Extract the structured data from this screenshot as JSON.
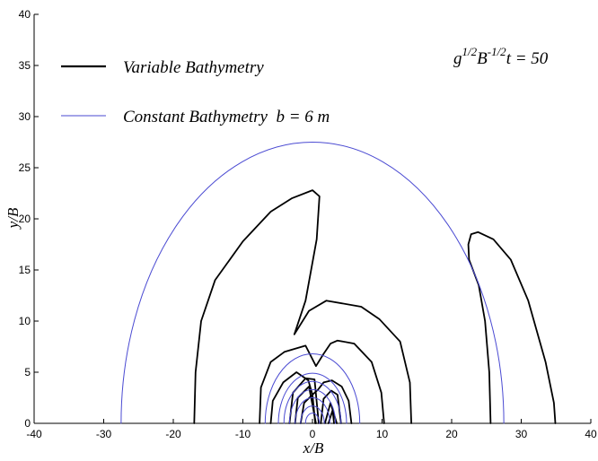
{
  "chart_data": {
    "type": "line",
    "xlabel": "x/B",
    "ylabel": "y/B",
    "xlim": [
      -40,
      40
    ],
    "ylim": [
      0,
      40
    ],
    "xticks": [
      -40,
      -30,
      -20,
      -10,
      0,
      10,
      20,
      30,
      40
    ],
    "yticks": [
      0,
      5,
      10,
      15,
      20,
      25,
      30,
      35,
      40
    ],
    "grid": false,
    "legend_position": "top-left",
    "annotation": {
      "base": "g",
      "exp1": "1/2",
      "mid": "B",
      "exp2": "-1/2",
      "tail": "t = 50"
    },
    "series": [
      {
        "name": "Variable Bathymetry",
        "color": "#000000",
        "curves": [
          {
            "x": [
              -17,
              -16.8,
              -16,
              -14,
              -10,
              -6,
              -3,
              0,
              1,
              0.6,
              -1,
              -2.6,
              -0.5,
              2,
              7,
              9.6,
              12.6,
              14,
              14.2
            ],
            "y": [
              0,
              5,
              10,
              14,
              17.8,
              20.7,
              22,
              22.8,
              22.2,
              18,
              12,
              8.7,
              11,
              12,
              11.4,
              10.2,
              8,
              4,
              0
            ]
          },
          {
            "x": [
              -7.6,
              -7.4,
              -6,
              -4,
              -1,
              0.5,
              1.6,
              2.6,
              3.6,
              6,
              8.5,
              9.9,
              10.3
            ],
            "y": [
              0,
              3.5,
              6,
              7,
              7.6,
              5.6,
              6.8,
              7.8,
              8.1,
              7.8,
              6,
              3,
              0
            ]
          },
          {
            "x": [
              -6,
              -5.7,
              -4.2,
              -2.3,
              -0.6,
              0,
              0.8,
              1.6,
              2.8,
              4.2,
              5.2,
              5.6
            ],
            "y": [
              0,
              2.2,
              4,
              5,
              4.2,
              2.8,
              3.3,
              4,
              4.2,
              3.6,
              2.2,
              0
            ]
          },
          {
            "x": [
              -3.3,
              -2.8,
              -1,
              0.3,
              0.9
            ],
            "y": [
              0,
              3,
              4.4,
              4.3,
              0
            ]
          },
          {
            "x": [
              -2.5,
              -2.1,
              -0.5,
              0.5
            ],
            "y": [
              0,
              2.5,
              3.6,
              0
            ]
          },
          {
            "x": [
              -1.7,
              -1.2,
              0,
              0.4
            ],
            "y": [
              0,
              2,
              2.8,
              0
            ]
          },
          {
            "x": [
              1.2,
              1.6,
              2.7,
              3.6,
              4.1
            ],
            "y": [
              0,
              2.4,
              3.2,
              2.8,
              0
            ]
          },
          {
            "x": [
              1.8,
              2.6,
              3.5
            ],
            "y": [
              0,
              2,
              0
            ]
          },
          {
            "x": [
              2.3,
              2.9,
              3.1
            ],
            "y": [
              0,
              1.3,
              0
            ]
          },
          {
            "x": [
              25.6,
              25.4,
              24.8,
              23.9,
              22.5,
              22.4,
              22.8,
              23.8,
              26,
              28.5,
              31,
              33.5,
              34.7,
              34.9
            ],
            "y": [
              0,
              5,
              10,
              13.5,
              16,
              17.5,
              18.5,
              18.7,
              18,
              16,
              12,
              6,
              2,
              0
            ]
          }
        ]
      },
      {
        "name": "Constant Bathymetry  b = 6 m",
        "color": "#4a4ad2",
        "curves": [
          {
            "type": "semicircle",
            "cx": 0,
            "r": 27.5
          },
          {
            "type": "semicircle",
            "cx": 0,
            "r": 6.8
          },
          {
            "type": "semicircle",
            "cx": 0,
            "r": 4.9
          },
          {
            "type": "semicircle",
            "cx": 0,
            "r": 4.1
          },
          {
            "type": "semicircle",
            "cx": 0,
            "r": 3.3
          },
          {
            "type": "semicircle",
            "cx": 0,
            "r": 2.5
          },
          {
            "type": "semicircle",
            "cx": 0,
            "r": 1.7
          },
          {
            "type": "semicircle",
            "cx": 0,
            "r": 1.0
          }
        ]
      }
    ]
  }
}
